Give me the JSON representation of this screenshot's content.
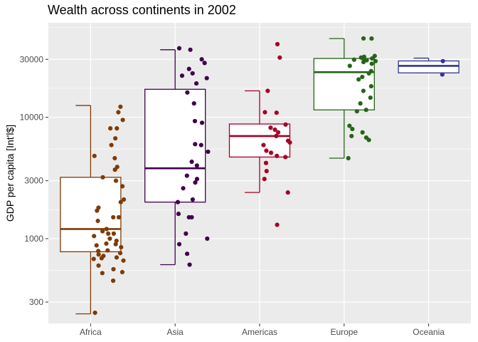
{
  "chart_data": {
    "type": "boxplot",
    "title": "Wealth across continents in 2002",
    "xlabel": "",
    "ylabel": "GDP per capita [Int'l$]",
    "y_scale": "log10",
    "ylim": [
      200,
      60000
    ],
    "y_ticks": [
      300,
      1000,
      3000,
      10000,
      30000
    ],
    "y_tick_labels": [
      "300",
      "1000",
      "3000",
      "10000",
      "30000"
    ],
    "grid": true,
    "legend": "none",
    "categories": [
      "Africa",
      "Asia",
      "Americas",
      "Europe",
      "Oceania"
    ],
    "colors": {
      "Africa": "#7f3b08",
      "Asia": "#40004b",
      "Americas": "#a50026",
      "Europe": "#276419",
      "Oceania": "#313695"
    },
    "boxes": [
      {
        "category": "Africa",
        "whisker_low": 240,
        "q1": 780,
        "median": 1200,
        "q3": 3200,
        "whisker_high": 12500
      },
      {
        "category": "Asia",
        "whisker_low": 610,
        "q1": 2000,
        "median": 3800,
        "q3": 17000,
        "whisker_high": 36000
      },
      {
        "category": "Americas",
        "whisker_low": 2400,
        "q1": 4700,
        "median": 7000,
        "q3": 8800,
        "whisker_high": 16500
      },
      {
        "category": "Europe",
        "whisker_low": 4600,
        "q1": 11500,
        "median": 23500,
        "q3": 30500,
        "whisker_high": 44500
      },
      {
        "category": "Oceania",
        "whisker_low": 23200,
        "q1": 23200,
        "median": 26500,
        "q3": 29100,
        "whisker_high": 30700
      }
    ],
    "points": [
      {
        "category": "Africa",
        "y": [
          12200,
          11000,
          9500,
          8100,
          8100,
          6700,
          5900,
          4800,
          4600,
          3900,
          3700,
          3200,
          3000,
          2700,
          2100,
          2000,
          1800,
          1700,
          1500,
          1500,
          1400,
          1200,
          1150,
          1100,
          1100,
          1050,
          1000,
          960,
          910,
          900,
          880,
          850,
          800,
          790,
          760,
          740,
          720,
          700,
          690,
          680,
          660,
          600,
          560,
          530,
          520,
          450,
          245
        ]
      },
      {
        "category": "Asia",
        "y": [
          37000,
          36000,
          30000,
          28000,
          25000,
          23000,
          22000,
          21000,
          19000,
          16000,
          13000,
          9300,
          9000,
          6000,
          5900,
          5200,
          4300,
          4000,
          3300,
          3100,
          2900,
          2600,
          2100,
          2000,
          1600,
          1500,
          1500,
          1100,
          1000,
          900,
          750,
          610
        ]
      },
      {
        "category": "Americas",
        "y": [
          40000,
          31000,
          16500,
          11000,
          10900,
          8700,
          8200,
          7900,
          7500,
          7000,
          6400,
          6200,
          5900,
          5300,
          5100,
          4800,
          4700,
          4200,
          3600,
          3100,
          2400,
          1300
        ]
      },
      {
        "category": "Europe",
        "y": [
          44600,
          44500,
          32000,
          31500,
          31000,
          30500,
          30000,
          29800,
          29500,
          29000,
          28500,
          27600,
          26500,
          24000,
          23000,
          21500,
          20500,
          18000,
          16500,
          14500,
          13000,
          11500,
          11200,
          8500,
          8000,
          7500,
          7000,
          6800,
          6500,
          4600
        ]
      },
      {
        "category": "Oceania",
        "y": [
          29000,
          22500
        ]
      }
    ]
  }
}
